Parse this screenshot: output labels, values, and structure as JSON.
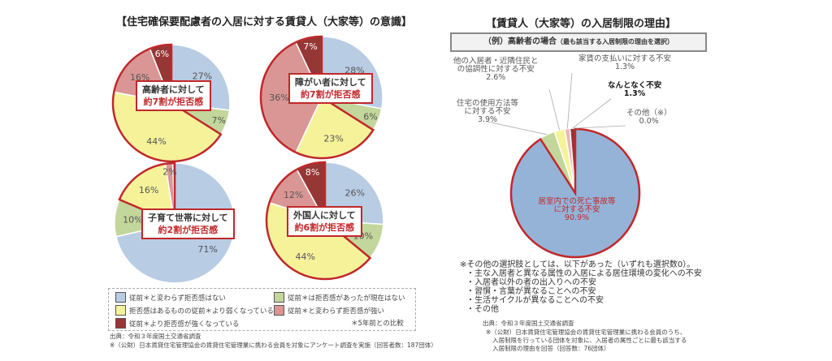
{
  "left": {
    "title": "【住宅確保要配慮者の入居に対する賃貸人（大家等）の意識】",
    "legend": [
      {
        "label": "従前＊と変わらず拒否感はない",
        "color": "#b8cce4"
      },
      {
        "label": "従前＊は拒否感があったが現在はない",
        "color": "#c3d69b"
      },
      {
        "label": "拒否感はあるものの従前＊より弱くなっている",
        "color": "#f5f29a"
      },
      {
        "label": "従前＊と変わらず拒否感が強い",
        "color": "#d99694"
      },
      {
        "label": "従前＊より拒否感が強くなっている",
        "color": "#953735"
      }
    ],
    "legend_note": "＊5年前との比較",
    "source": "出典：令和３年度国土交通省調査",
    "source_note": "※（公財）日本賃貸住宅管理協会の賃貸住宅管理業に携わる会員を対象にアンケート調査を実施（回答者数：187団体）"
  },
  "chart_data": [
    {
      "type": "pie",
      "name": "elderly",
      "callout": [
        "高齢者に対して",
        "約7割が拒否感"
      ],
      "values": [
        27,
        7,
        44,
        16,
        6
      ],
      "labels": [
        "27%",
        "7%",
        "44%",
        "16%",
        "6%"
      ]
    },
    {
      "type": "pie",
      "name": "disabled",
      "callout": [
        "障がい者に対して",
        "約7割が拒否感"
      ],
      "values": [
        28,
        6,
        23,
        36,
        7
      ],
      "labels": [
        "28%",
        "6%",
        "23%",
        "36%",
        "7%"
      ]
    },
    {
      "type": "pie",
      "name": "child-rearing",
      "callout": [
        "子育て世帯に対して",
        "約2割が拒否感"
      ],
      "values": [
        71,
        10,
        16,
        2,
        0.5
      ],
      "labels": [
        "71%",
        "10%",
        "16%",
        "2%",
        ""
      ]
    },
    {
      "type": "pie",
      "name": "foreigners",
      "callout": [
        "外国人に対して",
        "約6割が拒否感"
      ],
      "values": [
        26,
        10,
        44,
        12,
        8
      ],
      "labels": [
        "26%",
        "10%",
        "44%",
        "12%",
        "8%"
      ]
    },
    {
      "type": "pie",
      "name": "reasons-elderly",
      "categories": [
        "居室内での死亡事故等に対する不安",
        "住宅の使用方法等に対する不安",
        "他の入居者・近隣住民との協調性に対する不安",
        "家賃の支払いに対する不安",
        "なんとなく不安",
        "その他（※）"
      ],
      "values": [
        90.9,
        3.9,
        2.6,
        1.3,
        1.3,
        0.0
      ],
      "labels": [
        "90.9%",
        "3.9%",
        "2.6%",
        "1.3%",
        "1.3%",
        "0.0%"
      ],
      "colors": [
        "#95b3d7",
        "#c3d69b",
        "#f5f29a",
        "#e6b9b8",
        "#953735",
        "#7f7f7f"
      ]
    }
  ],
  "right": {
    "title": "【賃貸人（大家等）の入居制限の理由】",
    "subtitle": "（例）高齢者の場合",
    "subtitle_small": "（最も該当する入居制限の理由を選択）",
    "big_label": [
      "居室内での死亡事故等",
      "に対する不安",
      "90.9%"
    ],
    "ext_labels": [
      [
        "他の入居者・近隣住民と",
        "の協調性に対する不安",
        "2.6%"
      ],
      [
        "家賃の支払いに対する不安",
        "1.3%"
      ],
      [
        "なんとなく不安",
        "1.3%"
      ],
      [
        "住宅の使用方法等",
        "に対する不安",
        "3.9%"
      ],
      [
        "その他（※）",
        "0.0%"
      ]
    ],
    "notes": [
      "※その他の選択肢としては、以下があった（いずれも選択数0）。",
      "・主な入居者と異なる属性の入居による居住環境の変化への不安",
      "・入居者以外の者の出入りへの不安",
      "・習慣・言葉が異なることへの不安",
      "・生活サイクルが異なることへの不安",
      "・その他"
    ],
    "source": "出典：令和３年度国土交通省調査",
    "source_note": [
      "※（公財）日本賃貸住宅管理協会の賃貸住宅管理業に携わる会員のうち、",
      "入居制限を行っている団体を対象に、入居者の属性ごとに最も該当する",
      "入居制限の理由を回答（回答数：76団体）"
    ]
  },
  "colors": {
    "outline": "#c0282b"
  }
}
